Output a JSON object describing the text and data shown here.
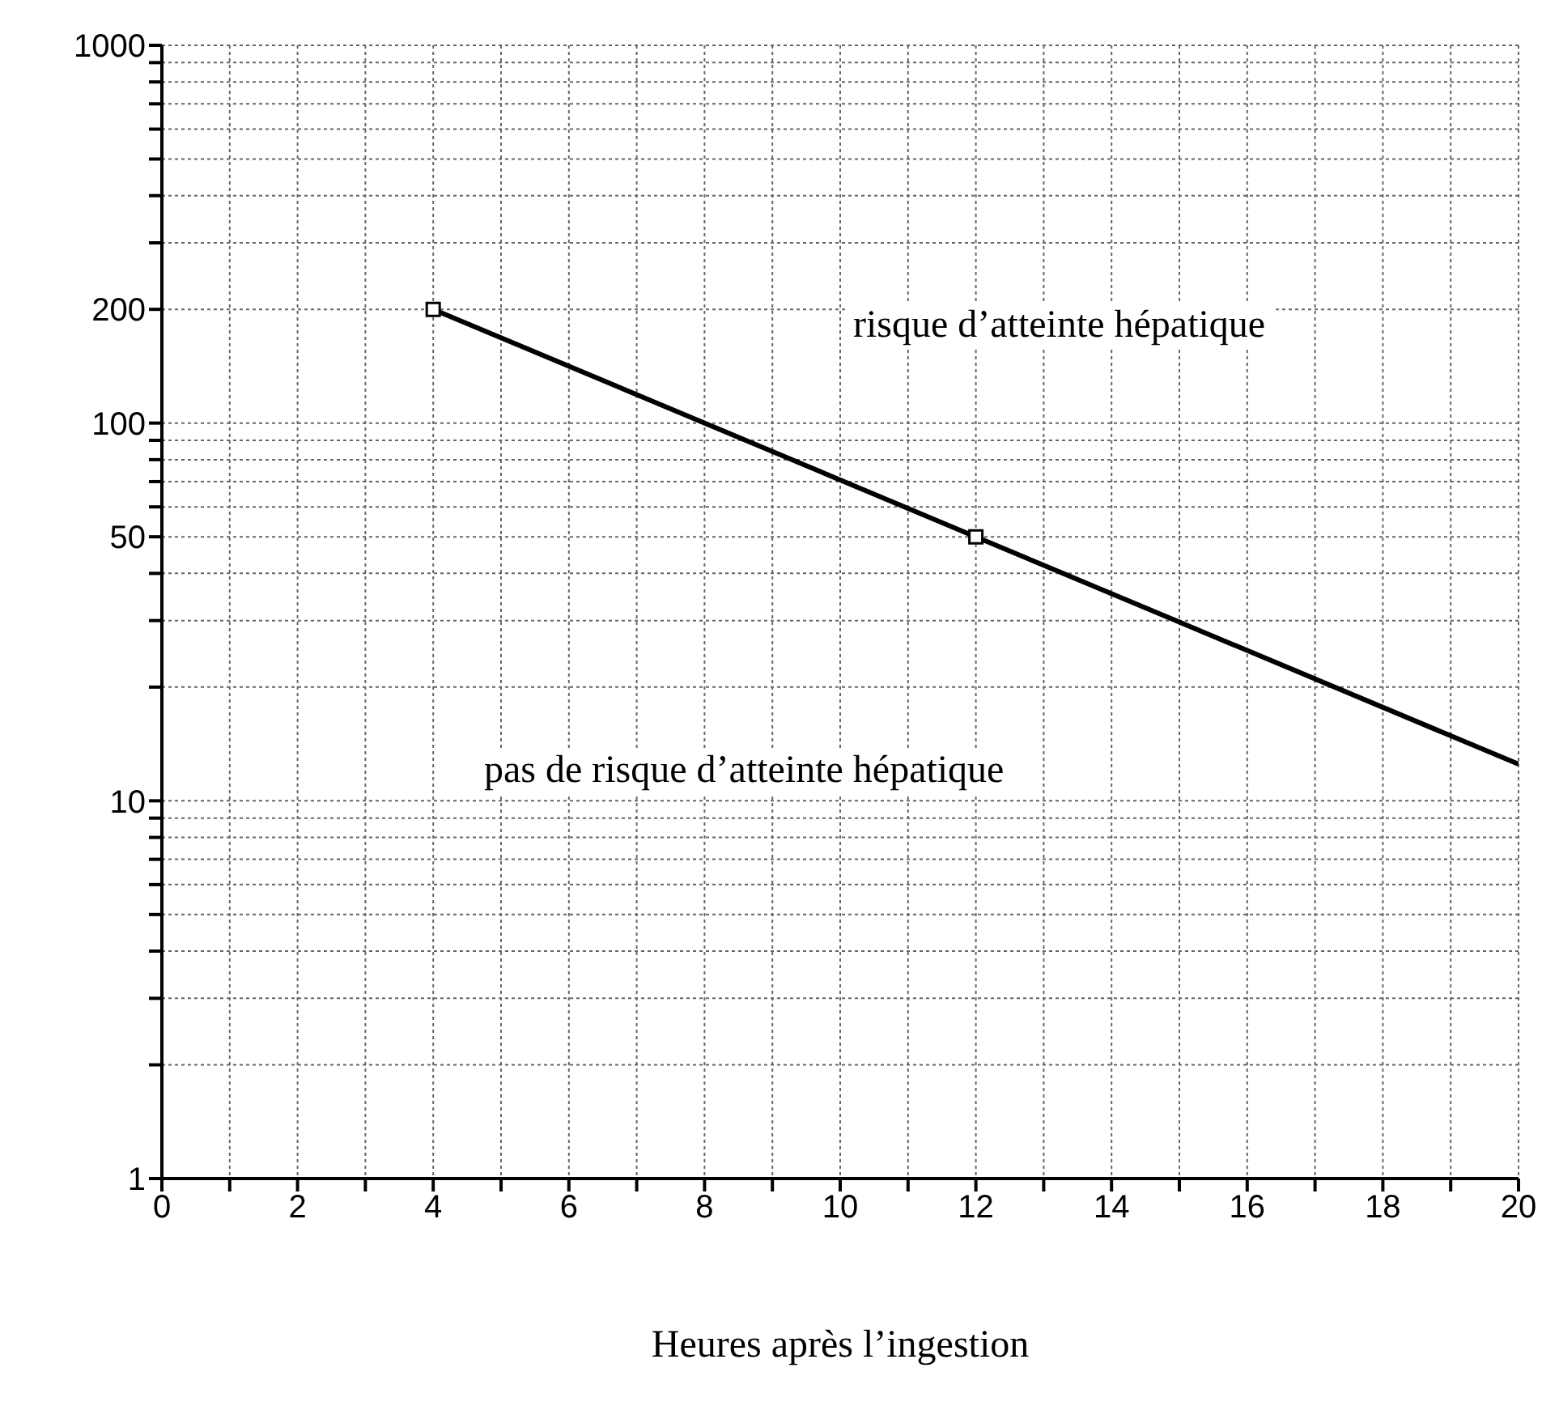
{
  "chart_data": {
    "type": "line",
    "xlabel": "Heures après l’ingestion",
    "series": [
      {
        "color": "#000000",
        "x": [
          4,
          12,
          20
        ],
        "values": [
          200,
          50,
          12.5
        ],
        "marker": "none"
      },
      {
        "type": "scatter",
        "color": "#000000",
        "x": [
          4,
          12
        ],
        "values": [
          200,
          50
        ],
        "marker": "square"
      }
    ],
    "annotations": [
      "risque d’atteinte hépatique",
      "pas de risque d’atteinte hépatique"
    ],
    "log": "y",
    "grid": true,
    "xlim": [
      0,
      20
    ],
    "xticks": [
      0,
      {
        "value": 1,
        "label": null
      },
      2,
      {
        "value": 3,
        "label": null
      },
      4,
      {
        "value": 5,
        "label": null
      },
      6,
      {
        "value": 7,
        "label": null
      },
      8,
      {
        "value": 9,
        "label": null
      },
      10,
      {
        "value": 11,
        "label": null
      },
      12,
      {
        "value": 13,
        "label": null
      },
      14,
      {
        "value": 15,
        "label": null
      },
      16,
      {
        "value": 17,
        "label": null
      },
      18,
      {
        "value": 19,
        "label": null
      },
      20
    ],
    "ylim": [
      1,
      1000
    ],
    "yticks": [
      1,
      {
        "value": 2,
        "label": null
      },
      {
        "value": 3,
        "label": null
      },
      {
        "value": 4,
        "label": null
      },
      {
        "value": 5,
        "label": null
      },
      {
        "value": 6,
        "label": null
      },
      {
        "value": 7,
        "label": null
      },
      {
        "value": 8,
        "label": null
      },
      {
        "value": 9,
        "label": null
      },
      10,
      {
        "value": 20,
        "label": null
      },
      {
        "value": 30,
        "label": null
      },
      {
        "value": 40,
        "label": null
      },
      50,
      {
        "value": 60,
        "label": null
      },
      {
        "value": 70,
        "label": null
      },
      {
        "value": 80,
        "label": null
      },
      {
        "value": 90,
        "label": null
      },
      100,
      200,
      {
        "value": 300,
        "label": null
      },
      {
        "value": 400,
        "label": null
      },
      {
        "value": 500,
        "label": null
      },
      {
        "value": 600,
        "label": null
      },
      {
        "value": 700,
        "label": null
      },
      {
        "value": 800,
        "label": null
      },
      {
        "value": 900,
        "label": null
      },
      1000
    ]
  }
}
